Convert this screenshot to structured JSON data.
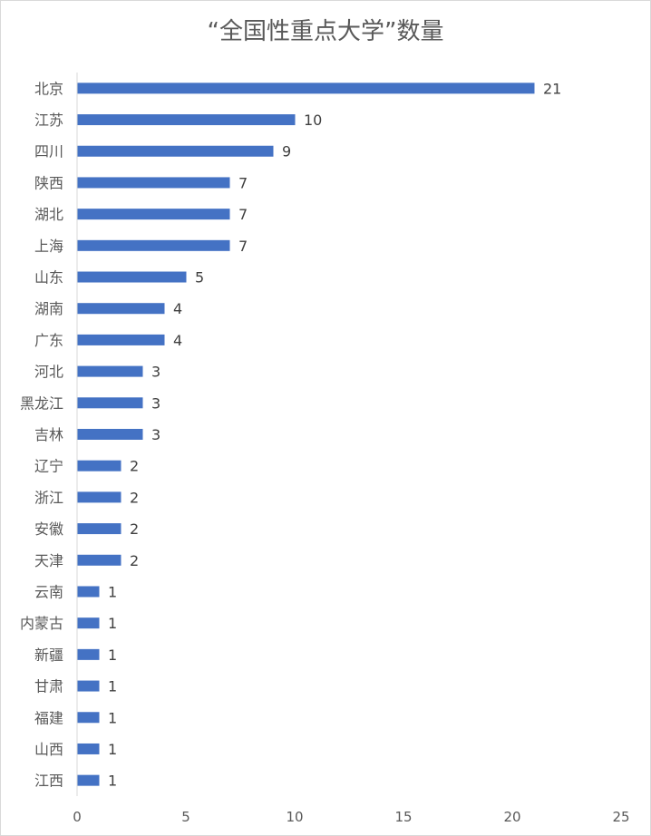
{
  "chart_data": {
    "type": "bar",
    "orientation": "horizontal",
    "title": "“全国性重点大学”数量",
    "xlabel": "",
    "ylabel": "",
    "xlim": [
      0,
      25
    ],
    "xticks": [
      0,
      5,
      10,
      15,
      20,
      25
    ],
    "grid": false,
    "legend": "none",
    "bar_color": "#4472c4",
    "categories": [
      "北京",
      "江苏",
      "四川",
      "陕西",
      "湖北",
      "上海",
      "山东",
      "湖南",
      "广东",
      "河北",
      "黑龙江",
      "吉林",
      "辽宁",
      "浙江",
      "安徽",
      "天津",
      "云南",
      "内蒙古",
      "新疆",
      "甘肃",
      "福建",
      "山西",
      "江西"
    ],
    "values": [
      21,
      10,
      9,
      7,
      7,
      7,
      5,
      4,
      4,
      3,
      3,
      3,
      2,
      2,
      2,
      2,
      1,
      1,
      1,
      1,
      1,
      1,
      1
    ],
    "data_labels": true
  }
}
